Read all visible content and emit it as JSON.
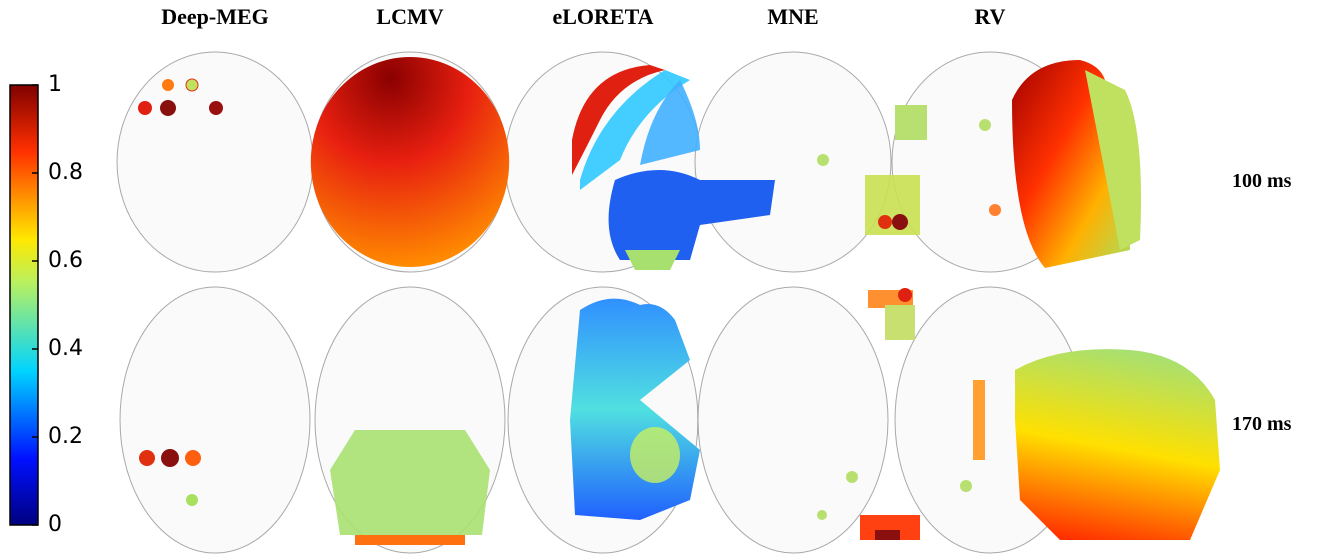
{
  "figure": {
    "columns": [
      "Deep-MEG",
      "LCMV",
      "eLORETA",
      "MNE",
      "RV"
    ],
    "rows": [
      "100 ms",
      "170 ms"
    ],
    "colorbar": {
      "ticks": [
        0,
        0.2,
        0.4,
        0.6,
        0.8,
        1
      ],
      "range": [
        0,
        1
      ]
    }
  }
}
